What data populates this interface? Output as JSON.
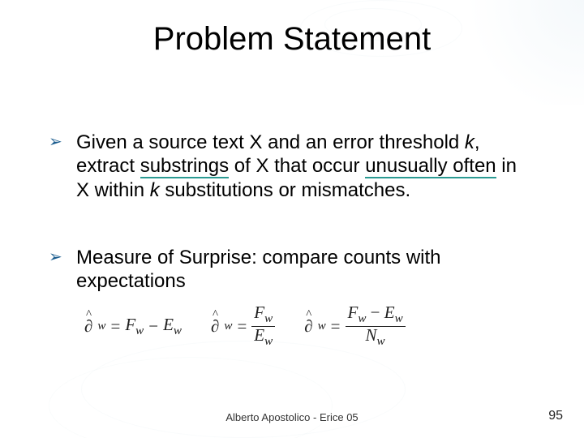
{
  "title": "Problem Statement",
  "bullets": [
    {
      "pre": "Given a source text X and an error threshold ",
      "k1": "k",
      "mid1": ", extract ",
      "u1": "substrings",
      "mid2": " of X that occur ",
      "u2": "unusually often",
      "mid3": " in X within ",
      "k2": "k",
      "tail": " substitutions or mismatches."
    },
    {
      "text": "Measure of Surprise: compare counts with expectations"
    }
  ],
  "equations": {
    "eq1": {
      "lhs_sym": "∂",
      "lhs_sub": "w",
      "eq": "=",
      "t1": "F",
      "t1s": "w",
      "minus": "−",
      "t2": "E",
      "t2s": "w"
    },
    "eq2": {
      "lhs_sym": "∂",
      "lhs_sub": "w",
      "eq": "=",
      "num": "F",
      "nums": "w",
      "den": "E",
      "dens": "w"
    },
    "eq3": {
      "lhs_sym": "∂",
      "lhs_sub": "w",
      "eq": "=",
      "num1": "F",
      "num1s": "w",
      "minus": "−",
      "num2": "E",
      "num2s": "w",
      "den": "N",
      "dens": "w"
    }
  },
  "footer": "Alberto Apostolico  - Erice 05",
  "page": "95",
  "colors": {
    "bullet_marker": "#1a5c8e",
    "underline": "#2a9a92",
    "text": "#000000",
    "background": "#ffffff"
  }
}
